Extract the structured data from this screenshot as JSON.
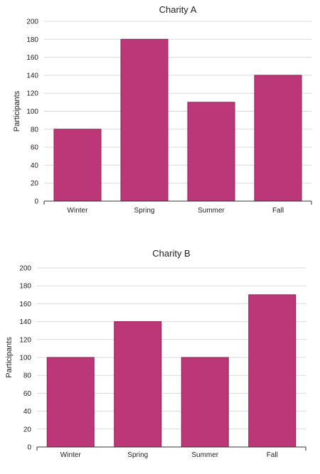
{
  "colors": {
    "bar_fill": "#bc3777",
    "bar_stroke": "#8e1f55",
    "grid": "#d9d9d9",
    "axis": "#333333"
  },
  "chart_data": [
    {
      "type": "bar",
      "title": "Charity A",
      "xlabel": "",
      "ylabel": "Participants",
      "categories": [
        "Winter",
        "Spring",
        "Summer",
        "Fall"
      ],
      "values": [
        80,
        180,
        110,
        140
      ],
      "ylim": [
        0,
        200
      ],
      "yticks": [
        0,
        20,
        40,
        60,
        80,
        100,
        120,
        140,
        160,
        180,
        200
      ],
      "grid": true
    },
    {
      "type": "bar",
      "title": "Charity B",
      "xlabel": "",
      "ylabel": "Participants",
      "categories": [
        "Winter",
        "Spring",
        "Summer",
        "Fall"
      ],
      "values": [
        100,
        140,
        100,
        170
      ],
      "ylim": [
        0,
        200
      ],
      "yticks": [
        0,
        20,
        40,
        60,
        80,
        100,
        120,
        140,
        160,
        180,
        200
      ],
      "grid": true
    }
  ]
}
